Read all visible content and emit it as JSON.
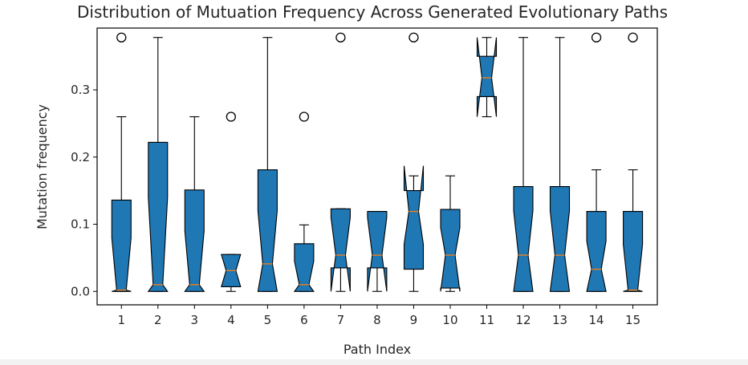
{
  "chart_data": {
    "type": "boxplot",
    "title": "Distribution of Mutuation Frequency Across Generated Evolutionary Paths",
    "xlabel": "Path Index",
    "ylabel": "Mutation frequency",
    "ylim": [
      -0.02,
      0.392
    ],
    "yticks": [
      "0.0",
      "0.1",
      "0.2",
      "0.3"
    ],
    "categories": [
      "1",
      "2",
      "3",
      "4",
      "5",
      "6",
      "7",
      "8",
      "9",
      "10",
      "11",
      "12",
      "13",
      "14",
      "15"
    ],
    "notched": true,
    "colors": {
      "box_fill": "#1f77b4",
      "median": "#ff7f0e",
      "edge": "#000000"
    },
    "boxes": [
      {
        "q1": 0.0,
        "median": 0.002,
        "q3": 0.136,
        "whisker_low": 0.0,
        "whisker_high": 0.26,
        "notch_low": 0.0,
        "notch_high": 0.08,
        "outliers": [
          0.378
        ]
      },
      {
        "q1": 0.0,
        "median": 0.01,
        "q3": 0.222,
        "whisker_low": 0.0,
        "whisker_high": 0.378,
        "notch_low": 0.0,
        "notch_high": 0.14,
        "outliers": []
      },
      {
        "q1": 0.0,
        "median": 0.01,
        "q3": 0.151,
        "whisker_low": 0.0,
        "whisker_high": 0.26,
        "notch_low": 0.0,
        "notch_high": 0.09,
        "outliers": []
      },
      {
        "q1": 0.007,
        "median": 0.031,
        "q3": 0.055,
        "whisker_low": 0.0,
        "whisker_high": 0.055,
        "notch_low": 0.007,
        "notch_high": 0.055,
        "outliers": [
          0.26
        ]
      },
      {
        "q1": 0.0,
        "median": 0.041,
        "q3": 0.181,
        "whisker_low": 0.0,
        "whisker_high": 0.378,
        "notch_low": 0.0,
        "notch_high": 0.12,
        "outliers": []
      },
      {
        "q1": 0.0,
        "median": 0.01,
        "q3": 0.071,
        "whisker_low": 0.0,
        "whisker_high": 0.099,
        "notch_low": 0.0,
        "notch_high": 0.045,
        "outliers": [
          0.26
        ]
      },
      {
        "q1": 0.035,
        "median": 0.054,
        "q3": 0.123,
        "whisker_low": 0.0,
        "whisker_high": 0.123,
        "notch_low": 0.0,
        "notch_high": 0.11,
        "outliers": [
          0.378
        ]
      },
      {
        "q1": 0.035,
        "median": 0.054,
        "q3": 0.119,
        "whisker_low": 0.0,
        "whisker_high": 0.119,
        "notch_low": 0.0,
        "notch_high": 0.11,
        "outliers": []
      },
      {
        "q1": 0.033,
        "median": 0.119,
        "q3": 0.15,
        "whisker_low": 0.0,
        "whisker_high": 0.172,
        "notch_low": 0.07,
        "notch_high": 0.187,
        "outliers": [
          0.378
        ]
      },
      {
        "q1": 0.005,
        "median": 0.054,
        "q3": 0.122,
        "whisker_low": 0.0,
        "whisker_high": 0.172,
        "notch_low": 0.0,
        "notch_high": 0.095,
        "outliers": []
      },
      {
        "q1": 0.29,
        "median": 0.318,
        "q3": 0.35,
        "whisker_low": 0.26,
        "whisker_high": 0.378,
        "notch_low": 0.26,
        "notch_high": 0.378,
        "outliers": []
      },
      {
        "q1": 0.0,
        "median": 0.054,
        "q3": 0.156,
        "whisker_low": 0.0,
        "whisker_high": 0.378,
        "notch_low": 0.0,
        "notch_high": 0.12,
        "outliers": []
      },
      {
        "q1": 0.0,
        "median": 0.054,
        "q3": 0.156,
        "whisker_low": 0.0,
        "whisker_high": 0.378,
        "notch_low": 0.0,
        "notch_high": 0.12,
        "outliers": []
      },
      {
        "q1": 0.0,
        "median": 0.033,
        "q3": 0.119,
        "whisker_low": 0.0,
        "whisker_high": 0.181,
        "notch_low": 0.0,
        "notch_high": 0.075,
        "outliers": [
          0.378
        ]
      },
      {
        "q1": 0.0,
        "median": 0.002,
        "q3": 0.119,
        "whisker_low": 0.0,
        "whisker_high": 0.181,
        "notch_low": 0.0,
        "notch_high": 0.07,
        "outliers": [
          0.378
        ]
      }
    ]
  }
}
